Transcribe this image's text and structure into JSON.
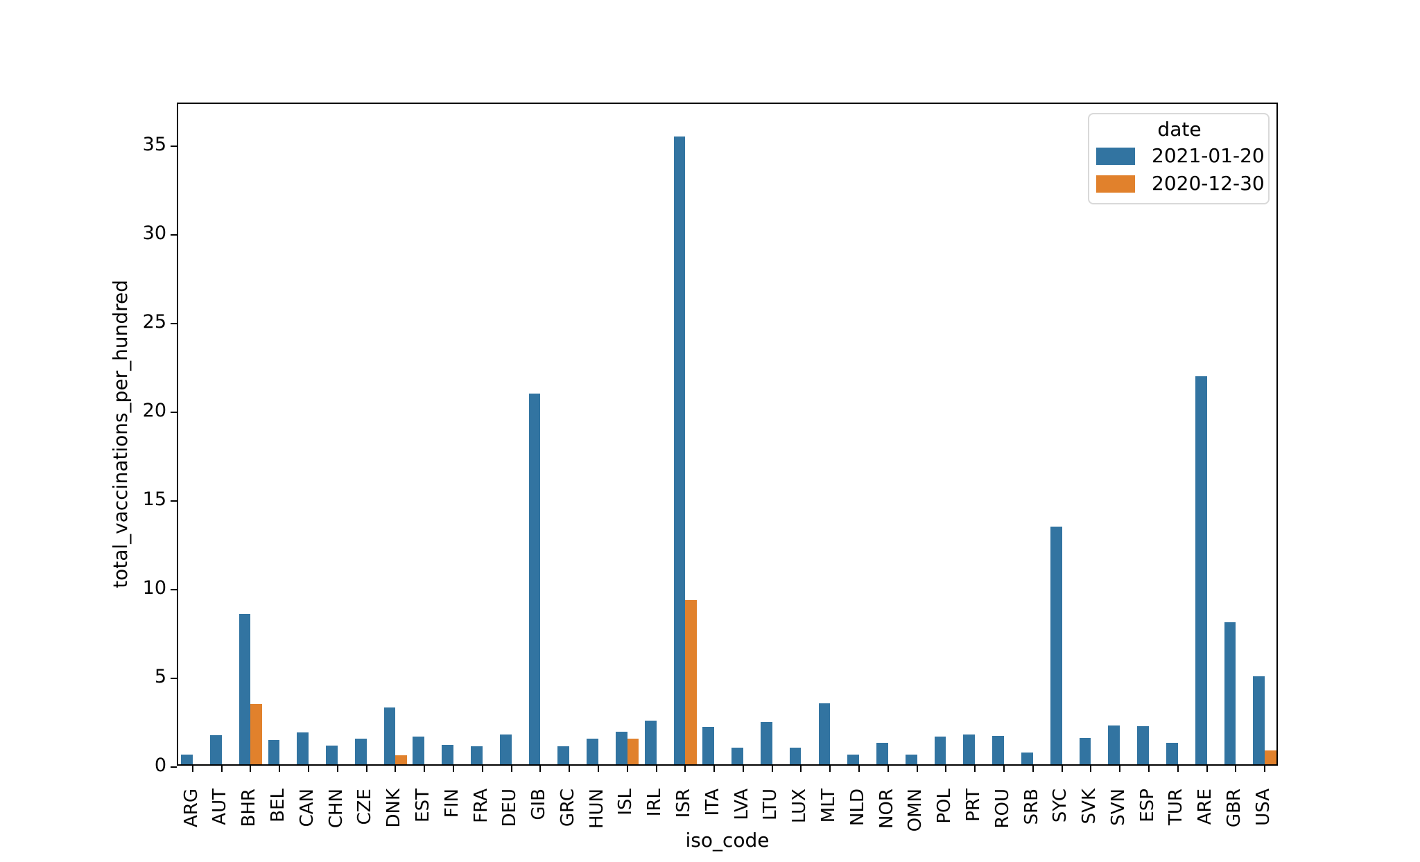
{
  "figure": {
    "background": "#ffffff",
    "axis_color": "#000000"
  },
  "chart_data": {
    "type": "bar",
    "title": "",
    "xlabel": "iso_code",
    "ylabel": "total_vaccinations_per_hundred",
    "ylim": [
      0,
      37.4
    ],
    "yticks": [
      0,
      5,
      10,
      15,
      20,
      25,
      30,
      35
    ],
    "grid": false,
    "legend_title": "date",
    "legend_position": "upper right",
    "categories": [
      "ARG",
      "AUT",
      "BHR",
      "BEL",
      "CAN",
      "CHN",
      "CZE",
      "DNK",
      "EST",
      "FIN",
      "FRA",
      "DEU",
      "GIB",
      "GRC",
      "HUN",
      "ISL",
      "IRL",
      "ISR",
      "ITA",
      "LVA",
      "LTU",
      "LUX",
      "MLT",
      "NLD",
      "NOR",
      "OMN",
      "POL",
      "PRT",
      "ROU",
      "SRB",
      "SYC",
      "SVK",
      "SVN",
      "ESP",
      "TUR",
      "ARE",
      "GBR",
      "USA"
    ],
    "series": [
      {
        "name": "2021-01-20",
        "color": "#3274a1",
        "values": [
          0.55,
          1.65,
          8.5,
          1.35,
          1.8,
          1.05,
          1.45,
          3.2,
          1.55,
          1.1,
          1.0,
          1.7,
          20.9,
          1.0,
          1.45,
          1.85,
          2.45,
          35.4,
          2.1,
          0.95,
          2.4,
          0.95,
          3.45,
          0.55,
          1.2,
          0.55,
          1.55,
          1.7,
          1.6,
          0.65,
          13.4,
          1.5,
          2.2,
          2.15,
          1.2,
          21.9,
          8.0,
          4.95
        ]
      },
      {
        "name": "2020-12-30",
        "color": "#e1812c",
        "values": [
          null,
          null,
          3.4,
          null,
          null,
          null,
          null,
          0.5,
          null,
          null,
          null,
          null,
          null,
          null,
          null,
          1.45,
          null,
          9.25,
          null,
          null,
          null,
          null,
          null,
          null,
          null,
          null,
          null,
          null,
          null,
          null,
          null,
          null,
          null,
          null,
          null,
          null,
          null,
          0.8
        ]
      }
    ]
  }
}
